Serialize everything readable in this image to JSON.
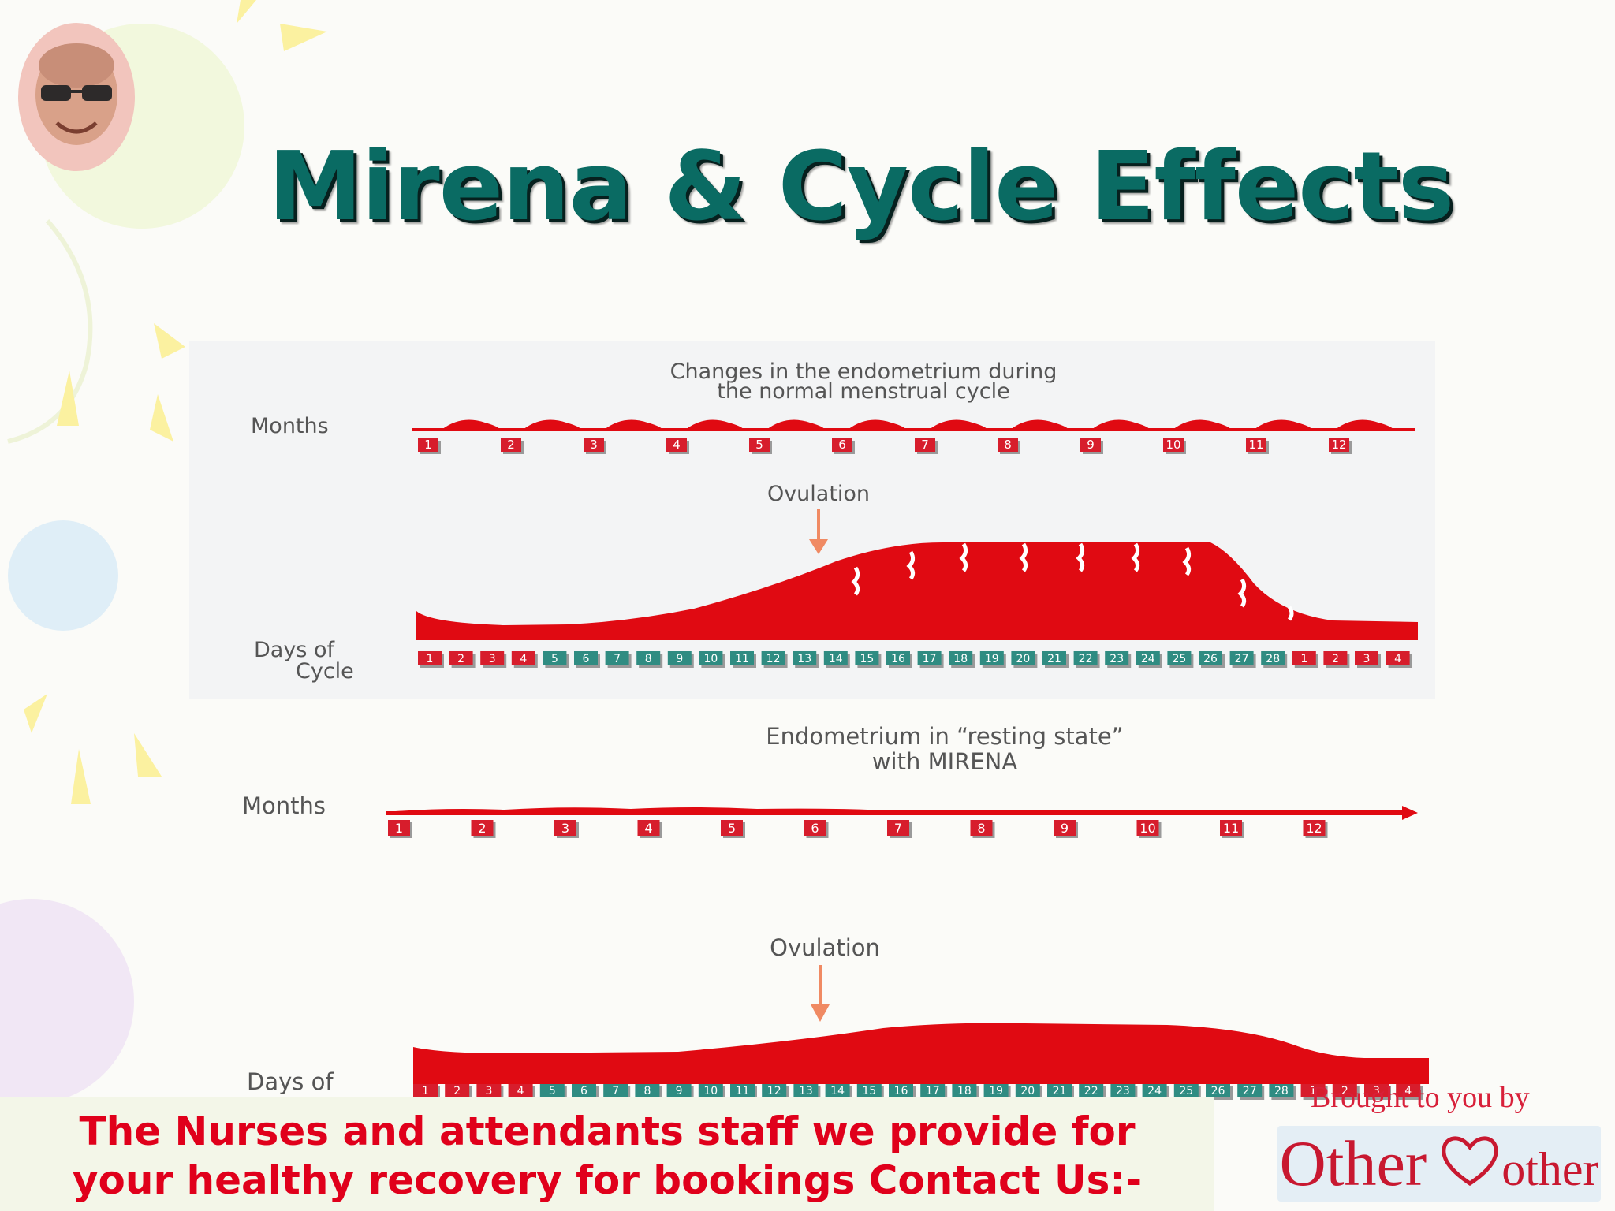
{
  "slide": {
    "title": "Mirena & Cycle Effects"
  },
  "diagram": {
    "top_panel": {
      "heading_line1": "Changes in the endometrium during",
      "heading_line2": "the normal menstrual cycle",
      "months_label": "Months",
      "months": [
        "1",
        "2",
        "3",
        "4",
        "5",
        "6",
        "7",
        "8",
        "9",
        "10",
        "11",
        "12"
      ],
      "ovulation_label": "Ovulation",
      "days_label_line1": "Days of",
      "days_label_line2": "Cycle",
      "days": [
        "1",
        "2",
        "3",
        "4",
        "5",
        "6",
        "7",
        "8",
        "9",
        "10",
        "11",
        "12",
        "13",
        "14",
        "15",
        "16",
        "17",
        "18",
        "19",
        "20",
        "21",
        "22",
        "23",
        "24",
        "25",
        "26",
        "27",
        "28",
        "1",
        "2",
        "3",
        "4"
      ]
    },
    "bottom_panel": {
      "heading_line1": "Endometrium in “resting state”",
      "heading_line2": "with MIRENA",
      "months_label": "Months",
      "months": [
        "1",
        "2",
        "3",
        "4",
        "5",
        "6",
        "7",
        "8",
        "9",
        "10",
        "11",
        "12"
      ],
      "ovulation_label": "Ovulation",
      "days_label": "Days of",
      "days": [
        "1",
        "2",
        "3",
        "4",
        "5",
        "6",
        "7",
        "8",
        "9",
        "10",
        "11",
        "12",
        "13",
        "14",
        "15",
        "16",
        "17",
        "18",
        "19",
        "20",
        "21",
        "22",
        "23",
        "24",
        "25",
        "26",
        "27",
        "28",
        "1",
        "2",
        "3",
        "4"
      ]
    },
    "colors": {
      "endometrium": "#e00a12",
      "month_box": "#d71d2c",
      "day_box": "#2f8c82",
      "arrow": "#f08a63"
    }
  },
  "footer": {
    "line1": "The Nurses and attendants staff we provide for",
    "line2": "your healthy recovery for bookings Contact Us:-"
  },
  "branding": {
    "brought_by": "Brought to you by",
    "logo_first": "Other",
    "logo_second": "other",
    "logo_icon": "heart-m-icon"
  }
}
